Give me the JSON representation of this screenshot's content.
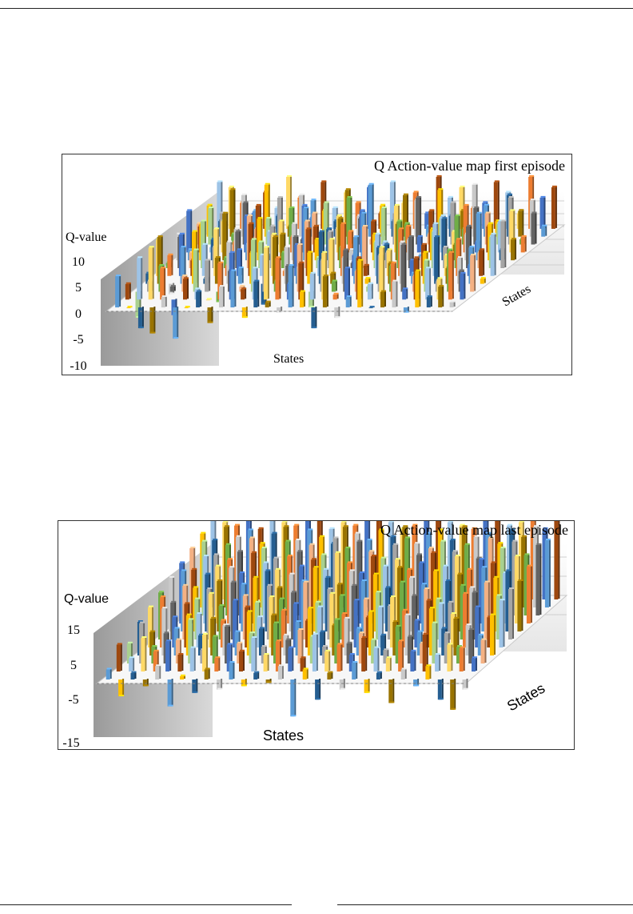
{
  "chart_data": [
    {
      "type": "bar",
      "subtype": "3d-column",
      "title": "Q Action-value map first episode",
      "ylabel": "Q-value",
      "xlabel": "States",
      "zlabel": "States",
      "y_ticks": [
        "10",
        "5",
        "0",
        "-5",
        "-10"
      ],
      "ylim": [
        -10,
        12
      ],
      "palette": [
        "#5b9bd5",
        "#ed7d31",
        "#a5a5a5",
        "#ffc000",
        "#4472c4",
        "#70ad47",
        "#255e91",
        "#9e480e",
        "#636363",
        "#997300",
        "#9dc3e6",
        "#f4b183",
        "#c9c9c9",
        "#ffd966",
        "#a9d18e"
      ],
      "grid": [
        [
          6,
          0,
          -4,
          -5,
          2,
          -6,
          0,
          3,
          -3,
          4,
          7,
          -2,
          5,
          1,
          -1,
          8,
          3,
          -4,
          6,
          -2,
          2,
          9,
          0,
          3,
          5,
          -1,
          7,
          2,
          4,
          1
        ],
        [
          3,
          8,
          10,
          6,
          -3,
          4,
          2,
          0,
          7,
          9,
          2,
          6,
          10,
          8,
          3,
          7,
          5,
          9,
          1,
          6,
          8,
          3,
          10,
          7,
          2,
          8,
          6,
          4,
          9,
          5
        ],
        [
          -5,
          2,
          5,
          1,
          3,
          8,
          6,
          -2,
          4,
          1,
          10,
          7,
          2,
          5,
          9,
          -3,
          6,
          2,
          8,
          4,
          1,
          7,
          5,
          9,
          3,
          6,
          2,
          8,
          4,
          7
        ],
        [
          2,
          9,
          -2,
          7,
          10,
          1,
          5,
          8,
          3,
          6,
          -4,
          9,
          7,
          3,
          6,
          10,
          2,
          5,
          9,
          1,
          7,
          4,
          8,
          2,
          6,
          9,
          3,
          5,
          7,
          1
        ],
        [
          7,
          4,
          8,
          3,
          6,
          9,
          2,
          5,
          10,
          4,
          8,
          1,
          6,
          9,
          3,
          7,
          10,
          4,
          2,
          8,
          5,
          9,
          3,
          6,
          10,
          4,
          7,
          2,
          5,
          8
        ],
        [
          1,
          6,
          3,
          9,
          4,
          2,
          7,
          10,
          5,
          8,
          3,
          6,
          9,
          2,
          7,
          4,
          1,
          8,
          5,
          3,
          9,
          6,
          2,
          7,
          4,
          10,
          8,
          3,
          6,
          9
        ],
        [
          5,
          2,
          7,
          4,
          9,
          6,
          3,
          8,
          1,
          5,
          7,
          10,
          4,
          6,
          8,
          2,
          9,
          5,
          3,
          7,
          4,
          1,
          6,
          8,
          3,
          5,
          9,
          7,
          2,
          4
        ],
        [
          8,
          5,
          1,
          6,
          2,
          7,
          9,
          4,
          6,
          3,
          9,
          5,
          1,
          7,
          4,
          8,
          6,
          2,
          9,
          5,
          3,
          8,
          7,
          4,
          9,
          2,
          5,
          6,
          8,
          3
        ],
        [
          4,
          7,
          6,
          2,
          8,
          3,
          5,
          9,
          7,
          1,
          6,
          8,
          3,
          9,
          5,
          1,
          7,
          6,
          4,
          9,
          2,
          5,
          8,
          3,
          7,
          6,
          4,
          9,
          1,
          6
        ],
        [
          6,
          3,
          9,
          8,
          5,
          10,
          4,
          2,
          8,
          7,
          5,
          3,
          9,
          4,
          10,
          6,
          3,
          8,
          7,
          2,
          9,
          4,
          5,
          10,
          6,
          3,
          8,
          5,
          7,
          2
        ],
        [
          9,
          8,
          5,
          3,
          7,
          4,
          10,
          6,
          2,
          9,
          4,
          7,
          5,
          8,
          3,
          9,
          5,
          7,
          3,
          10,
          6,
          8,
          4,
          5,
          9,
          7,
          3,
          10,
          6,
          8
        ]
      ]
    },
    {
      "type": "bar",
      "subtype": "3d-column",
      "title": "Q Action-value map  last episode",
      "ylabel": "Q-value",
      "xlabel": "States",
      "zlabel": "States",
      "y_ticks": [
        "15",
        "5",
        "-5",
        "-15"
      ],
      "ylim": [
        -15,
        25
      ],
      "palette": [
        "#5b9bd5",
        "#ed7d31",
        "#a5a5a5",
        "#ffc000",
        "#4472c4",
        "#70ad47",
        "#255e91",
        "#9e480e",
        "#636363",
        "#997300",
        "#9dc3e6",
        "#f4b183",
        "#c9c9c9",
        "#ffd966",
        "#a9d18e"
      ],
      "grid": [
        [
          3,
          -5,
          2,
          -2,
          4,
          -8,
          1,
          -4,
          3,
          -3,
          5,
          -2,
          2,
          -1,
          4,
          -11,
          3,
          -6,
          2,
          -3,
          5,
          -4,
          2,
          -7,
          3,
          -2,
          4,
          -6,
          -9,
          -3
        ],
        [
          8,
          4,
          10,
          6,
          9,
          5,
          7,
          11,
          4,
          8,
          6,
          10,
          5,
          9,
          7,
          4,
          11,
          6,
          8,
          5,
          10,
          7,
          4,
          9,
          6,
          11,
          5,
          8,
          7,
          4
        ],
        [
          6,
          12,
          5,
          9,
          7,
          13,
          4,
          8,
          11,
          6,
          9,
          5,
          12,
          7,
          10,
          8,
          5,
          13,
          6,
          9,
          7,
          4,
          11,
          8,
          6,
          12,
          9,
          5,
          10,
          7
        ],
        [
          10,
          7,
          14,
          8,
          12,
          6,
          11,
          9,
          7,
          13,
          8,
          12,
          6,
          10,
          14,
          7,
          9,
          11,
          8,
          13,
          6,
          10,
          12,
          7,
          14,
          8,
          11,
          9,
          6,
          12
        ],
        [
          12,
          15,
          9,
          13,
          10,
          16,
          8,
          14,
          12,
          9,
          15,
          11,
          13,
          8,
          12,
          16,
          10,
          14,
          9,
          12,
          15,
          11,
          8,
          14,
          13,
          10,
          16,
          12,
          9,
          14
        ],
        [
          14,
          11,
          16,
          12,
          15,
          10,
          17,
          13,
          11,
          16,
          12,
          14,
          17,
          11,
          15,
          13,
          16,
          12,
          14,
          10,
          17,
          13,
          15,
          12,
          11,
          16,
          14,
          17,
          13,
          15
        ],
        [
          16,
          18,
          13,
          17,
          15,
          19,
          14,
          16,
          18,
          13,
          17,
          15,
          19,
          16,
          14,
          18,
          15,
          17,
          13,
          19,
          16,
          14,
          18,
          15,
          17,
          13,
          19,
          16,
          18,
          15
        ],
        [
          18,
          16,
          20,
          17,
          19,
          15,
          21,
          18,
          16,
          20,
          17,
          19,
          16,
          21,
          18,
          15,
          20,
          17,
          19,
          16,
          18,
          21,
          17,
          20,
          16,
          19,
          18,
          15,
          20,
          17
        ],
        [
          20,
          22,
          18,
          21,
          19,
          23,
          20,
          17,
          22,
          19,
          21,
          18,
          23,
          20,
          22,
          19,
          17,
          21,
          23,
          18,
          20,
          22,
          19,
          21,
          17,
          23,
          20,
          22,
          18,
          21
        ],
        [
          22,
          20,
          24,
          21,
          23,
          19,
          22,
          24,
          20,
          23,
          21,
          19,
          24,
          22,
          20,
          23,
          21,
          24,
          19,
          22,
          23,
          20,
          24,
          21,
          22,
          19,
          23,
          21,
          24,
          20
        ],
        [
          24,
          23,
          22,
          25,
          21,
          24,
          23,
          22,
          25,
          24,
          21,
          23,
          22,
          25,
          24,
          23,
          21,
          22,
          25,
          24,
          23,
          22,
          21,
          25,
          24,
          22,
          23,
          25,
          21,
          24
        ]
      ]
    }
  ]
}
